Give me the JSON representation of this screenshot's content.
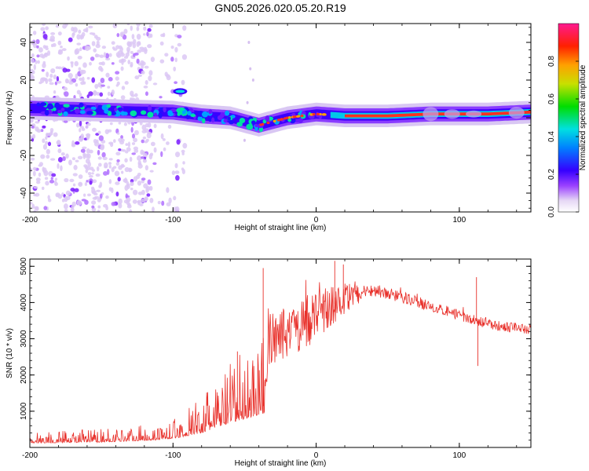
{
  "title": "GN05.2026.020.05.20.R19",
  "chart_data": [
    {
      "type": "heatmap",
      "name": "spectrogram",
      "xlabel": "Height of straight line (km)",
      "ylabel": "Frequency (Hz)",
      "xlim": [
        -200,
        150
      ],
      "ylim": [
        -50,
        50
      ],
      "xticks": [
        -200,
        -100,
        0,
        100
      ],
      "yticks": [
        -40,
        -20,
        0,
        20,
        40
      ],
      "xtick_labels": [
        "-200",
        "-100",
        "0",
        "100"
      ],
      "ytick_labels": [
        "-40",
        "-20",
        "0",
        "20",
        "40"
      ],
      "ridge": {
        "x": [
          -200,
          -150,
          -100,
          -80,
          -60,
          -50,
          -40,
          -35,
          -20,
          0,
          20,
          50,
          80,
          100,
          120,
          150
        ],
        "freq": [
          5,
          4,
          3,
          1,
          0,
          -2,
          -4,
          -3,
          0,
          2,
          1,
          1,
          2,
          2,
          2,
          3
        ]
      },
      "colorbar": {
        "label": "Normalized spectral amplitude",
        "range": [
          0,
          1
        ],
        "ticks": [
          0.0,
          0.2,
          0.4,
          0.6,
          0.8
        ],
        "tick_labels": [
          "0.0",
          "0.2",
          "0.4",
          "0.6",
          "0.8"
        ]
      }
    },
    {
      "type": "line",
      "name": "snr",
      "xlabel": "Height of straight line (km)",
      "ylabel": "SNR (10 * v/v)",
      "xlim": [
        -200,
        150
      ],
      "ylim": [
        0,
        5200
      ],
      "xticks": [
        -200,
        -100,
        0,
        100
      ],
      "yticks": [
        1000,
        2000,
        3000,
        4000,
        5000
      ],
      "xtick_labels": [
        "-200",
        "-100",
        "0",
        "100"
      ],
      "ytick_labels": [
        "1000",
        "2000",
        "3000",
        "4000",
        "5000"
      ],
      "color": "#e8302a",
      "series": [
        {
          "name": "SNR envelope",
          "x": [
            -200,
            -150,
            -110,
            -95,
            -80,
            -65,
            -55,
            -45,
            -36,
            -34,
            -20,
            -5,
            10,
            25,
            40,
            60,
            80,
            100,
            120,
            150
          ],
          "base": [
            150,
            180,
            250,
            330,
            500,
            750,
            900,
            1050,
            1150,
            2900,
            3150,
            3500,
            3900,
            4200,
            4350,
            4150,
            3900,
            3650,
            3400,
            3250
          ],
          "noise": [
            200,
            230,
            280,
            350,
            650,
            900,
            1150,
            1350,
            1350,
            1100,
            1050,
            1050,
            900,
            450,
            250,
            220,
            220,
            200,
            200,
            200
          ]
        }
      ],
      "spikes": [
        {
          "x": -37,
          "y": 4950
        },
        {
          "x": 13,
          "y": 5150
        },
        {
          "x": 19,
          "y": 5050
        },
        {
          "x": -55,
          "y": 2650
        },
        {
          "x": 112,
          "y": 4700
        },
        {
          "x": 113,
          "y": 2250
        }
      ]
    }
  ]
}
